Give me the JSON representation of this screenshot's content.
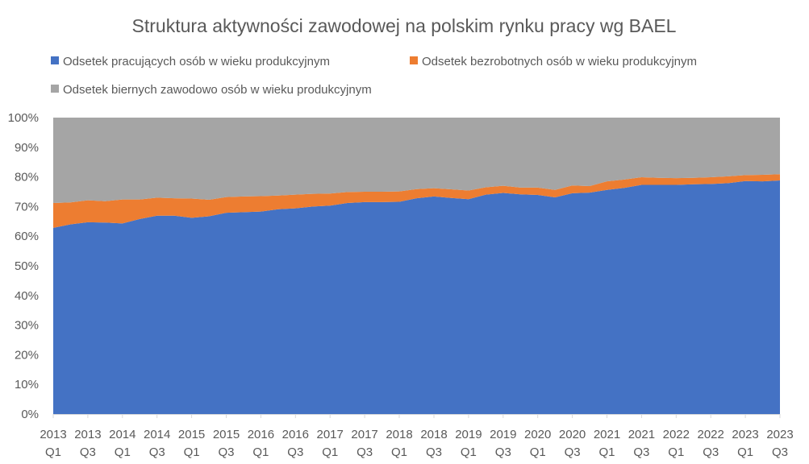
{
  "chart_data": {
    "type": "area",
    "stacked": true,
    "title": "Struktura aktywności zawodowej na polskim rynku pracy wg BAEL",
    "xlabel": "",
    "ylabel": "",
    "ylim": [
      0,
      100
    ],
    "y_unit": "%",
    "yticks": [
      "0%",
      "10%",
      "20%",
      "30%",
      "40%",
      "50%",
      "60%",
      "70%",
      "80%",
      "90%",
      "100%"
    ],
    "legend_position": "top",
    "x": [
      "2013 Q1",
      "2013 Q2",
      "2013 Q3",
      "2013 Q4",
      "2014 Q1",
      "2014 Q2",
      "2014 Q3",
      "2014 Q4",
      "2015 Q1",
      "2015 Q2",
      "2015 Q3",
      "2015 Q4",
      "2016 Q1",
      "2016 Q2",
      "2016 Q3",
      "2016 Q4",
      "2017 Q1",
      "2017 Q2",
      "2017 Q3",
      "2017 Q4",
      "2018 Q1",
      "2018 Q2",
      "2018 Q3",
      "2018 Q4",
      "2019 Q1",
      "2019 Q2",
      "2019 Q3",
      "2019 Q4",
      "2020 Q1",
      "2020 Q2",
      "2020 Q3",
      "2020 Q4",
      "2021 Q1",
      "2021 Q2",
      "2021 Q3",
      "2021 Q4",
      "2022 Q1",
      "2022 Q2",
      "2022 Q3",
      "2022 Q4",
      "2023 Q1",
      "2023 Q2",
      "2023 Q3"
    ],
    "x_tick_labels": [
      {
        "year": "2013",
        "quarter": "Q1"
      },
      {
        "year": "2013",
        "quarter": "Q3"
      },
      {
        "year": "2014",
        "quarter": "Q1"
      },
      {
        "year": "2014",
        "quarter": "Q3"
      },
      {
        "year": "2015",
        "quarter": "Q1"
      },
      {
        "year": "2015",
        "quarter": "Q3"
      },
      {
        "year": "2016",
        "quarter": "Q1"
      },
      {
        "year": "2016",
        "quarter": "Q3"
      },
      {
        "year": "2017",
        "quarter": "Q1"
      },
      {
        "year": "2017",
        "quarter": "Q3"
      },
      {
        "year": "2018",
        "quarter": "Q1"
      },
      {
        "year": "2018",
        "quarter": "Q3"
      },
      {
        "year": "2019",
        "quarter": "Q1"
      },
      {
        "year": "2019",
        "quarter": "Q3"
      },
      {
        "year": "2020",
        "quarter": "Q1"
      },
      {
        "year": "2020",
        "quarter": "Q3"
      },
      {
        "year": "2021",
        "quarter": "Q1"
      },
      {
        "year": "2021",
        "quarter": "Q3"
      },
      {
        "year": "2022",
        "quarter": "Q1"
      },
      {
        "year": "2022",
        "quarter": "Q3"
      },
      {
        "year": "2023",
        "quarter": "Q1"
      },
      {
        "year": "2023",
        "quarter": "Q3"
      }
    ],
    "series": [
      {
        "name": "Odsetek pracujących osób w wieku produkcyjnym",
        "color": "#4472C4",
        "values": [
          62.8,
          64.0,
          64.7,
          64.6,
          64.3,
          65.8,
          66.9,
          66.9,
          66.2,
          66.7,
          67.9,
          68.1,
          68.3,
          69.1,
          69.4,
          70.0,
          70.3,
          71.2,
          71.5,
          71.5,
          71.6,
          72.8,
          73.4,
          72.9,
          72.5,
          74.0,
          74.6,
          74.1,
          73.9,
          73.1,
          74.5,
          74.7,
          75.6,
          76.3,
          77.3,
          77.3,
          77.3,
          77.5,
          77.6,
          77.9,
          78.6,
          78.5,
          78.8
        ]
      },
      {
        "name": "Odsetek bezrobotnych osób w wieku produkcyjnym",
        "color": "#ED7D31",
        "values": [
          8.4,
          7.4,
          7.4,
          7.2,
          8.1,
          6.6,
          6.1,
          5.9,
          6.5,
          5.6,
          5.3,
          5.3,
          5.2,
          4.6,
          4.6,
          4.3,
          4.1,
          3.7,
          3.5,
          3.5,
          3.5,
          3.1,
          2.8,
          2.9,
          2.9,
          2.5,
          2.4,
          2.3,
          2.5,
          2.5,
          2.6,
          2.2,
          2.9,
          2.8,
          2.6,
          2.4,
          2.3,
          2.2,
          2.3,
          2.3,
          2.0,
          2.2,
          2.1
        ]
      },
      {
        "name": "Odsetek biernych zawodowo osób w wieku produkcyjnym",
        "color": "#A5A5A5",
        "values": [
          28.8,
          28.6,
          27.9,
          28.2,
          27.6,
          27.6,
          27.0,
          27.2,
          27.3,
          27.7,
          26.8,
          26.6,
          26.5,
          26.3,
          26.0,
          25.7,
          25.6,
          25.1,
          25.0,
          25.0,
          24.9,
          24.1,
          23.8,
          24.2,
          24.6,
          23.5,
          23.0,
          23.6,
          23.6,
          24.4,
          22.9,
          23.1,
          21.5,
          20.9,
          20.1,
          20.3,
          20.4,
          20.3,
          20.1,
          19.8,
          19.4,
          19.3,
          19.1
        ]
      }
    ]
  }
}
